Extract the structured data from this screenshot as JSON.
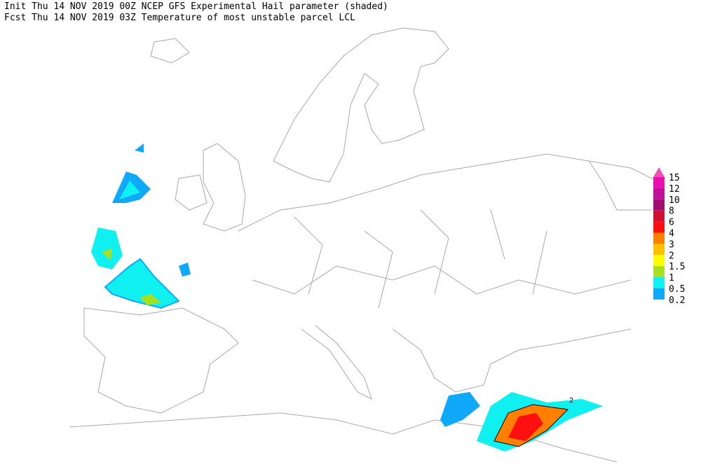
{
  "header": {
    "init": "Init  Thu 14 NOV 2019 00Z  NCEP GFS Experimental Hail parameter (shaded)",
    "fcst": "Fcst Thu 14 NOV 2019 03Z  Temperature of most unstable parcel LCL"
  },
  "legend": {
    "levels": [
      {
        "value": 15,
        "color": "#f050b0"
      },
      {
        "value": 12,
        "color": "#e810b0"
      },
      {
        "value": 10,
        "color": "#c0109a"
      },
      {
        "value": 8,
        "color": "#a01070"
      },
      {
        "value": 6,
        "color": "#d01030"
      },
      {
        "value": 4,
        "color": "#ff1010"
      },
      {
        "value": 3,
        "color": "#ff8000"
      },
      {
        "value": 2,
        "color": "#ffc000"
      },
      {
        "value": 1.5,
        "color": "#ffff00"
      },
      {
        "value": 1,
        "color": "#a8e020"
      },
      {
        "value": 0.5,
        "color": "#10f0f0"
      },
      {
        "value": 0.2,
        "color": "#10a8f8"
      }
    ]
  },
  "contour_labels": [
    "2"
  ]
}
